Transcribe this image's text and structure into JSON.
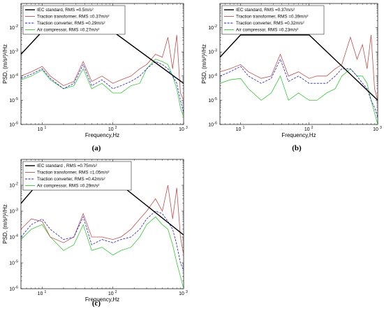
{
  "chart_data": [
    {
      "type": "line",
      "panel_label": "(a)",
      "xlabel": "Frequency,Hz",
      "ylabel": "PSD, (m/s²)²/Hz",
      "x_scale": "log",
      "y_scale": "log",
      "xlim": [
        5,
        1000
      ],
      "ylim": [
        1e-06,
        0.1
      ],
      "x_ticks": [
        "10",
        "10",
        "10"
      ],
      "x_tick_exps": [
        "1",
        "2",
        "3"
      ],
      "y_ticks": [
        "10",
        "10",
        "10",
        "10",
        "10"
      ],
      "y_tick_exps": [
        "-6",
        "-5",
        "-4",
        "-3",
        "-2"
      ],
      "legend_position": "top-left",
      "series": [
        {
          "name": "IEC standard, RMS =0.5m/s²",
          "color": "#000000",
          "style": "solid",
          "x": [
            5,
            10,
            100,
            1000
          ],
          "y": [
            0.0008,
            0.007,
            0.007,
            5e-05
          ]
        },
        {
          "name": "Traction transformer, RMS =0.37m/s²",
          "color": "#c0504d",
          "style": "solid",
          "x": [
            5,
            7,
            10,
            13,
            20,
            28,
            38,
            50,
            70,
            100,
            130,
            180,
            240,
            300,
            400,
            500,
            600,
            700,
            800,
            900,
            1000
          ],
          "y": [
            0.0001,
            0.00015,
            0.00025,
            0.0001,
            4e-05,
            6e-05,
            0.0004,
            6e-05,
            0.0001,
            5e-05,
            7e-05,
            0.0001,
            0.0002,
            0.0003,
            0.0008,
            0.0006,
            0.004,
            0.0002,
            0.005,
            2e-05,
            1e-05
          ]
        },
        {
          "name": "Traction converter, RMS =0.29m/s²",
          "color": "#1f1fd0",
          "style": "dashed",
          "x": [
            5,
            7,
            10,
            13,
            20,
            28,
            38,
            50,
            70,
            100,
            130,
            180,
            240,
            300,
            400,
            500,
            600,
            700,
            800,
            900,
            1000
          ],
          "y": [
            8e-05,
            0.00012,
            0.0002,
            8e-05,
            3e-05,
            5e-05,
            0.0003,
            4e-05,
            7e-05,
            3e-05,
            4e-05,
            6e-05,
            0.0001,
            0.0002,
            0.0004,
            0.0003,
            0.0002,
            0.0001,
            5e-05,
            1e-05,
            3e-06
          ]
        },
        {
          "name": "Air compressor, RMS =0.27m/s²",
          "color": "#33cc33",
          "style": "solid",
          "x": [
            5,
            7,
            10,
            13,
            20,
            28,
            38,
            50,
            70,
            100,
            130,
            180,
            240,
            300,
            400,
            500,
            600,
            700,
            800,
            900,
            1000
          ],
          "y": [
            7e-05,
            0.0001,
            0.00018,
            7e-05,
            3e-05,
            4e-05,
            0.0002,
            3e-05,
            5e-05,
            2e-05,
            2e-05,
            4e-05,
            5e-05,
            0.0002,
            0.0005,
            0.0004,
            0.0003,
            0.0001,
            3e-05,
            5e-06,
            2e-06
          ]
        }
      ]
    },
    {
      "type": "line",
      "panel_label": "(b)",
      "xlabel": "Frequency,Hz",
      "ylabel": "PSD, (m/s²)²/Hz",
      "x_scale": "log",
      "y_scale": "log",
      "xlim": [
        5,
        1000
      ],
      "ylim": [
        1e-06,
        0.1
      ],
      "x_ticks": [
        "10",
        "10",
        "10"
      ],
      "x_tick_exps": [
        "1",
        "2",
        "3"
      ],
      "y_ticks": [
        "10",
        "10",
        "10",
        "10",
        "10"
      ],
      "y_tick_exps": [
        "-6",
        "-5",
        "-4",
        "-3",
        "-2"
      ],
      "legend_position": "top-left",
      "series": [
        {
          "name": "IEC standard, RMS =0.37m/s²",
          "color": "#000000",
          "style": "solid",
          "x": [
            5,
            10,
            100,
            1000
          ],
          "y": [
            0.0006,
            0.005,
            0.005,
            1e-05
          ]
        },
        {
          "name": "Traction transformer, RMS =0.39m/s²",
          "color": "#c0504d",
          "style": "solid",
          "x": [
            5,
            7,
            10,
            13,
            20,
            28,
            38,
            50,
            70,
            100,
            130,
            180,
            240,
            300,
            400,
            500,
            600,
            700,
            800,
            900,
            1000
          ],
          "y": [
            0.00015,
            0.0002,
            0.0003,
            0.00015,
            8e-05,
            0.0001,
            0.0008,
            0.0001,
            0.00015,
            8e-05,
            0.0001,
            0.0001,
            0.0002,
            0.0003,
            0.004,
            0.0005,
            0.002,
            0.0002,
            0.005,
            3e-05,
            1e-05
          ]
        },
        {
          "name": "Traction converter, RMS =0.32m/s²",
          "color": "#1f1fd0",
          "style": "dashed",
          "x": [
            5,
            7,
            10,
            13,
            20,
            28,
            38,
            50,
            70,
            100,
            130,
            180,
            240,
            300,
            400,
            500,
            600,
            700,
            800,
            900,
            1000
          ],
          "y": [
            0.0001,
            0.00015,
            0.00025,
            0.0001,
            5e-05,
            8e-05,
            0.0005,
            6e-05,
            0.0001,
            5e-05,
            5e-05,
            5e-05,
            0.0001,
            0.0002,
            0.0002,
            0.0001,
            5e-05,
            3e-05,
            1e-05,
            5e-06,
            2e-06
          ]
        },
        {
          "name": "Air compressor, RMS =0.23m/s²",
          "color": "#33cc33",
          "style": "solid",
          "x": [
            5,
            7,
            10,
            13,
            20,
            28,
            38,
            50,
            70,
            100,
            130,
            180,
            240,
            300,
            400,
            500,
            600,
            700,
            800,
            900,
            1000
          ],
          "y": [
            5e-05,
            7e-05,
            8e-05,
            3e-05,
            1e-05,
            2e-05,
            0.0001,
            1e-05,
            2e-05,
            1e-05,
            1e-05,
            2e-05,
            3e-05,
            0.0001,
            0.0002,
            0.0001,
            0.0001,
            5e-05,
            1e-05,
            3e-06,
            1e-06
          ]
        }
      ]
    },
    {
      "type": "line",
      "panel_label": "(c)",
      "xlabel": "Frequency,Hz",
      "ylabel": "PSD, (m/s²)²/Hz",
      "x_scale": "log",
      "y_scale": "log",
      "xlim": [
        5,
        1000
      ],
      "ylim": [
        1e-06,
        0.1
      ],
      "x_ticks": [
        "10",
        "10",
        "10"
      ],
      "x_tick_exps": [
        "1",
        "2",
        "3"
      ],
      "y_ticks": [
        "10",
        "10",
        "10",
        "10",
        "10"
      ],
      "y_tick_exps": [
        "-6",
        "-5",
        "-4",
        "-3",
        "-2"
      ],
      "legend_position": "top-left",
      "series": [
        {
          "name": "IEC standard , RMS =0.75m/s²",
          "color": "#000000",
          "style": "solid",
          "x": [
            5,
            10,
            100,
            1000
          ],
          "y": [
            0.002,
            0.018,
            0.018,
            0.00012
          ]
        },
        {
          "name": "Traction transformer, RMS =1.05m/s²",
          "color": "#c0504d",
          "style": "solid",
          "x": [
            5,
            7,
            10,
            13,
            20,
            28,
            38,
            50,
            70,
            100,
            130,
            180,
            240,
            300,
            400,
            500,
            600,
            700,
            800,
            900,
            1000
          ],
          "y": [
            0.0002,
            0.0005,
            0.0004,
            0.0001,
            6e-05,
            0.0001,
            0.0008,
            0.0001,
            0.0001,
            8e-05,
            0.0001,
            0.0002,
            0.0005,
            0.001,
            0.003,
            0.001,
            0.01,
            0.0005,
            0.008,
            0.0001,
            2e-05
          ]
        },
        {
          "name": "Traction converter, RMS =0.42m/s²",
          "color": "#1f1fd0",
          "style": "dashed",
          "x": [
            5,
            7,
            10,
            13,
            20,
            28,
            38,
            50,
            70,
            100,
            130,
            180,
            240,
            300,
            400,
            500,
            600,
            700,
            800,
            900,
            1000
          ],
          "y": [
            0.0001,
            0.0003,
            0.0005,
            0.0002,
            8e-05,
            0.0001,
            0.0006,
            5e-05,
            8e-05,
            6e-05,
            8e-05,
            0.0001,
            0.0002,
            0.0005,
            0.001,
            0.0008,
            0.0004,
            0.0002,
            5e-05,
            1e-05,
            5e-06
          ]
        },
        {
          "name": "Air compressor, RMS =0.29m/s²",
          "color": "#33cc33",
          "style": "solid",
          "x": [
            5,
            7,
            10,
            13,
            20,
            28,
            38,
            50,
            70,
            100,
            130,
            180,
            240,
            300,
            400,
            500,
            600,
            700,
            800,
            900,
            1000
          ],
          "y": [
            8e-05,
            0.0002,
            0.0003,
            0.0001,
            3e-05,
            5e-05,
            0.0003,
            3e-05,
            4e-05,
            2e-05,
            3e-05,
            4e-05,
            0.0001,
            0.0003,
            0.0006,
            0.0003,
            0.0002,
            5e-05,
            1e-05,
            3e-06,
            1e-06
          ]
        }
      ]
    }
  ]
}
